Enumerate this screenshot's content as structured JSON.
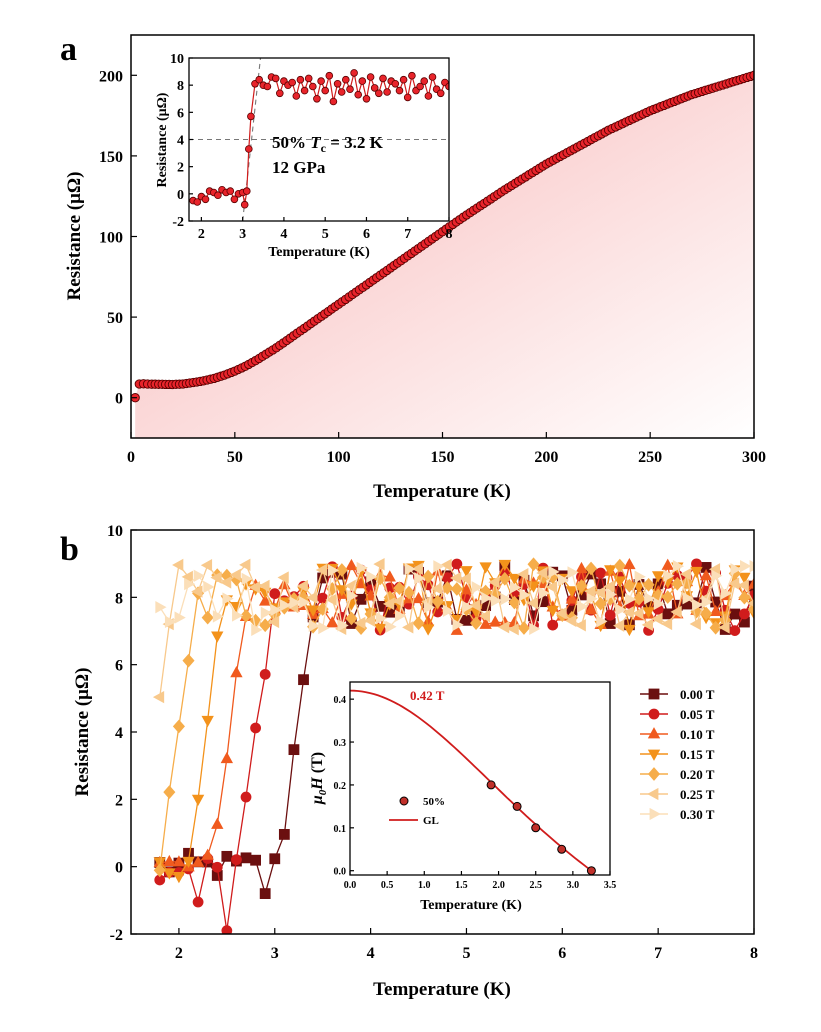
{
  "chart_data": [
    {
      "id": "a",
      "panel_label": "a",
      "type": "area",
      "xlabel": "Temperature (K)",
      "ylabel": "Resistance (μΩ)",
      "xlim": [
        0,
        300
      ],
      "ylim": [
        -25,
        225
      ],
      "xticks": [
        0,
        50,
        100,
        150,
        200,
        250,
        300
      ],
      "yticks": [
        0,
        50,
        100,
        150,
        200
      ],
      "colors": {
        "marker_fill": "#e8242b",
        "marker_edge": "#5a0000",
        "area_top": "#f7b5b5",
        "area_bottom": "#ffffff"
      },
      "series": [
        {
          "name": "",
          "x": [
            2,
            4,
            6,
            8,
            10,
            15,
            20,
            25,
            30,
            35,
            40,
            45,
            50,
            55,
            60,
            65,
            70,
            75,
            80,
            85,
            90,
            95,
            100,
            110,
            120,
            130,
            140,
            150,
            160,
            170,
            180,
            190,
            200,
            210,
            220,
            230,
            240,
            250,
            260,
            270,
            280,
            290,
            300
          ],
          "y": [
            0,
            8.5,
            8.6,
            8.5,
            8.4,
            8.3,
            8.2,
            8.5,
            9.4,
            10.5,
            12,
            14,
            16.5,
            19.5,
            23,
            27,
            31,
            35.5,
            40,
            44.5,
            49,
            53.5,
            58,
            67,
            76,
            85,
            94,
            103,
            112,
            120.5,
            129,
            137,
            145,
            152,
            159,
            166,
            172,
            178,
            183,
            188,
            192,
            196,
            200
          ]
        }
      ]
    },
    {
      "id": "a_inset",
      "type": "line",
      "xlabel": "Temperature (K)",
      "ylabel": "Resistance (μΩ)",
      "xlim": [
        1.7,
        8
      ],
      "ylim": [
        -2,
        10
      ],
      "xticks": [
        2,
        3,
        4,
        5,
        6,
        7,
        8
      ],
      "yticks": [
        -2,
        0,
        2,
        4,
        6,
        8,
        10
      ],
      "annotations": {
        "line1_prefix": "50% ",
        "line1_T": "T",
        "line1_sub": "c",
        "line1_suffix": " = 3.2 K",
        "line2": "12 GPa"
      },
      "reference_lines": {
        "horizontal_y": 4,
        "vertical_x": 3.0
      },
      "series": [
        {
          "name": "",
          "x": [
            1.8,
            1.9,
            2.0,
            2.1,
            2.2,
            2.3,
            2.4,
            2.5,
            2.6,
            2.7,
            2.8,
            2.9,
            3.0,
            3.05,
            3.1,
            3.15,
            3.2,
            3.3,
            3.4,
            3.5,
            3.6,
            3.7,
            3.8,
            3.9,
            4.0,
            4.1,
            4.2,
            4.3,
            4.4,
            4.5,
            4.6,
            4.7,
            4.8,
            4.9,
            5.0,
            5.1,
            5.2,
            5.3,
            5.4,
            5.5,
            5.6,
            5.7,
            5.8,
            5.9,
            6.0,
            6.1,
            6.2,
            6.3,
            6.4,
            6.5,
            6.6,
            6.7,
            6.8,
            6.9,
            7.0,
            7.1,
            7.2,
            7.3,
            7.4,
            7.5,
            7.6,
            7.7,
            7.8,
            7.9,
            8.0
          ],
          "y": [
            -0.5,
            -0.6,
            -0.2,
            -0.4,
            0.2,
            0.1,
            -0.1,
            0.3,
            0.1,
            0.2,
            -0.4,
            0.0,
            0.1,
            -0.8,
            0.2,
            3.3,
            5.7,
            8.1,
            8.4,
            8.0,
            7.9,
            8.6,
            8.5,
            7.4,
            8.3,
            8.0,
            8.2,
            7.2,
            8.4,
            7.6,
            8.5,
            7.9,
            7.0,
            8.3,
            7.6,
            8.7,
            6.8,
            8.1,
            7.5,
            8.4,
            7.7,
            8.9,
            7.3,
            8.3,
            7.0,
            8.6,
            7.8,
            7.4,
            8.5,
            7.5,
            8.3,
            8.1,
            7.6,
            8.4,
            7.1,
            8.7,
            7.6,
            7.9,
            8.3,
            7.2,
            8.6,
            7.7,
            7.4,
            8.2,
            7.9
          ]
        }
      ]
    },
    {
      "id": "b",
      "panel_label": "b",
      "type": "line",
      "xlabel": "Temperature (K)",
      "ylabel": "Resistance (μΩ)",
      "xlim": [
        1.5,
        8
      ],
      "ylim": [
        -2,
        10
      ],
      "xticks": [
        2,
        3,
        4,
        5,
        6,
        7,
        8
      ],
      "yticks": [
        -2,
        0,
        2,
        4,
        6,
        8,
        10
      ],
      "legend_position": "right",
      "series": [
        {
          "name": "0.00 T",
          "marker": "square",
          "color": "#6b0f0f",
          "transition": [
            3.05,
            3.4
          ]
        },
        {
          "name": "0.05 T",
          "marker": "circle",
          "color": "#d01c1c",
          "transition": [
            2.6,
            3.0
          ]
        },
        {
          "name": "0.10 T",
          "marker": "triangle-up",
          "color": "#f05a1e",
          "transition": [
            2.35,
            2.7
          ]
        },
        {
          "name": "0.15 T",
          "marker": "triangle-down",
          "color": "#f3921b",
          "transition": [
            2.1,
            2.45
          ]
        },
        {
          "name": "0.20 T",
          "marker": "diamond",
          "color": "#f6ad4a",
          "transition": [
            1.8,
            2.2
          ]
        },
        {
          "name": "0.25 T",
          "marker": "triangle-left",
          "color": "#f8c98c",
          "transition": [
            1.6,
            1.9
          ]
        },
        {
          "name": "0.30 T",
          "marker": "triangle-right",
          "color": "#fbdfb9",
          "transition": [
            1.5,
            1.8
          ]
        }
      ]
    },
    {
      "id": "b_inset",
      "type": "scatter",
      "xlabel": "Temperature (K)",
      "ylabel_main": "μ",
      "ylabel_sub": "0",
      "ylabel_italic": "H",
      "ylabel_unit": " (T)",
      "xlim": [
        0,
        3.5
      ],
      "ylim": [
        -0.01,
        0.44
      ],
      "xticks": [
        0.0,
        0.5,
        1.0,
        1.5,
        2.0,
        2.5,
        3.0,
        3.5
      ],
      "yticks": [
        0.0,
        0.1,
        0.2,
        0.3,
        0.4
      ],
      "hc_label": "0.42 T",
      "legend": [
        {
          "name": "50%",
          "type": "marker"
        },
        {
          "name": "GL",
          "type": "line"
        }
      ],
      "points": {
        "x": [
          1.9,
          2.25,
          2.5,
          2.85,
          3.25
        ],
        "y": [
          0.2,
          0.15,
          0.1,
          0.05,
          0.0
        ]
      },
      "fit": {
        "Hc0": 0.42,
        "Tc": 3.25
      }
    }
  ]
}
